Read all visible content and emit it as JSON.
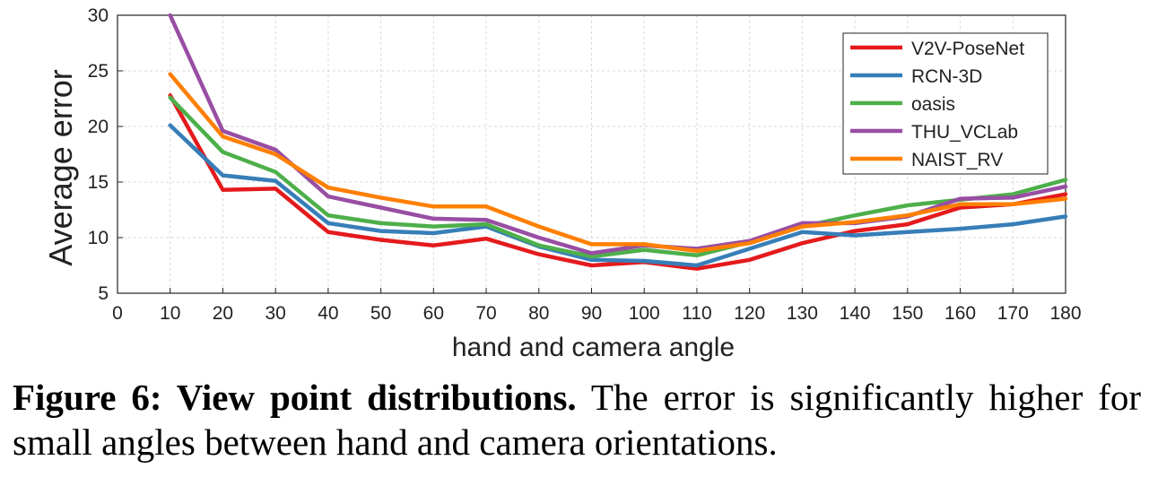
{
  "chart_data": {
    "type": "line",
    "xlabel": "hand and camera angle",
    "ylabel": "Average error",
    "xlim": [
      0,
      180
    ],
    "ylim": [
      5,
      30
    ],
    "xticks": [
      0,
      10,
      20,
      30,
      40,
      50,
      60,
      70,
      80,
      90,
      100,
      110,
      120,
      130,
      140,
      150,
      160,
      170,
      180
    ],
    "yticks": [
      5,
      10,
      15,
      20,
      25,
      30
    ],
    "grid": true,
    "legend_position": "top-right",
    "x": [
      10,
      20,
      30,
      40,
      50,
      60,
      70,
      80,
      90,
      100,
      110,
      120,
      130,
      140,
      150,
      160,
      170,
      180
    ],
    "series": [
      {
        "name": "V2V-PoseNet",
        "color": "#e41a1c",
        "values": [
          22.8,
          14.3,
          14.4,
          10.5,
          9.8,
          9.3,
          9.9,
          8.5,
          7.5,
          7.8,
          7.2,
          8.0,
          9.5,
          10.6,
          11.2,
          12.7,
          13.0,
          13.9
        ]
      },
      {
        "name": "RCN-3D",
        "color": "#377eb8",
        "values": [
          20.1,
          15.6,
          15.1,
          11.3,
          10.6,
          10.4,
          11.0,
          9.2,
          8.0,
          7.9,
          7.5,
          9.0,
          10.5,
          10.2,
          10.5,
          10.8,
          11.2,
          11.9
        ]
      },
      {
        "name": "oasis",
        "color": "#4daf4a",
        "values": [
          22.6,
          17.7,
          15.9,
          12.0,
          11.3,
          11.0,
          11.2,
          9.3,
          8.3,
          8.9,
          8.4,
          9.6,
          11.0,
          12.0,
          12.9,
          13.4,
          13.9,
          15.2
        ]
      },
      {
        "name": "THU_VCLab",
        "color": "#984ea3",
        "values": [
          30.0,
          19.6,
          17.9,
          13.7,
          12.7,
          11.7,
          11.6,
          10.0,
          8.6,
          9.3,
          9.0,
          9.7,
          11.3,
          11.3,
          11.9,
          13.5,
          13.6,
          14.6
        ]
      },
      {
        "name": "NAIST_RV",
        "color": "#ff7f00",
        "values": [
          24.7,
          19.1,
          17.5,
          14.5,
          13.6,
          12.8,
          12.8,
          11.0,
          9.4,
          9.4,
          8.8,
          9.5,
          11.0,
          11.4,
          12.0,
          13.0,
          13.0,
          13.5
        ]
      }
    ]
  },
  "caption": {
    "bold": "Figure 6:  View point distributions.",
    "text": "  The error is significantly higher for small angles between hand and camera orientations."
  }
}
